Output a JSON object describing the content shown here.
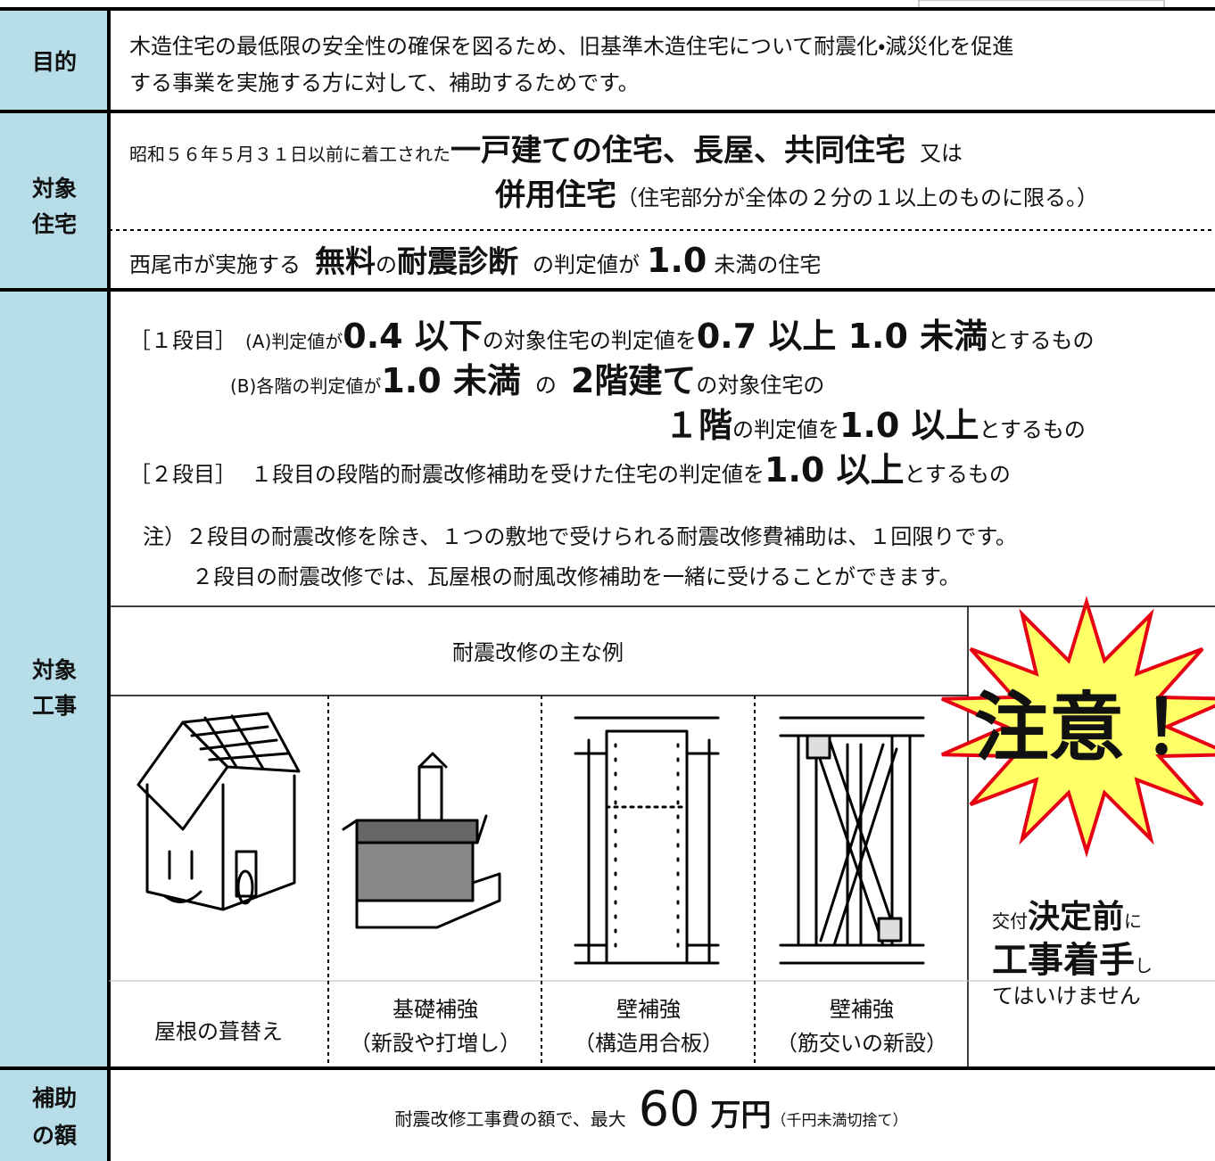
{
  "purpose": {
    "label": "目的",
    "lines": [
      "木造住宅の最低限の安全性の確保を図るため、旧基準木造住宅について耐震化・減災化を促進",
      "する事業を実施する方に対して、補助するためです。"
    ]
  },
  "target_housing": {
    "label": [
      "対象",
      "住宅"
    ],
    "line1": [
      "昭和５６年５月３１日以前に着工された",
      "一戸建ての住宅、長屋、共同住宅",
      "又は"
    ],
    "line2": [
      "併用住宅",
      "（住宅部分が全体の２分の１以上のものに限る。）"
    ],
    "line3": [
      "西尾市が実施する",
      "無料",
      "の",
      "耐震診断",
      "の判定値が",
      "1.0",
      "未満の住宅"
    ]
  },
  "target_work": {
    "label": [
      "対象",
      "工事"
    ],
    "step1": [
      "［１段目］",
      "(A)判定値が",
      "0.4 以下",
      "の対象住宅の判定値を",
      "0.7 以上 1.0 未満",
      "とするもの"
    ],
    "step1b": [
      "(B)各階の判定値が",
      "1.0 未満",
      "の",
      "2階建て",
      "の対象住宅の"
    ],
    "step1c": [
      "１階",
      "の判定値を",
      "1.0 以上",
      "とするもの"
    ],
    "step2": [
      "［２段目］",
      "１段目の段階的耐震改修補助を受けた住宅の判定値を",
      "1.0 以上",
      "とするもの"
    ],
    "notes": [
      "注）２段目の耐震改修を除き、１つの敷地で受けられる耐震改修費補助は、１回限りです。",
      "２段目の耐震改修では、瓦屋根の耐風改修補助を一緒に受けることができます。"
    ],
    "examples_title": "耐震改修の主な例",
    "examples": [
      [
        "屋根の葺替え"
      ],
      [
        "基礎補強",
        "（新設や打増し）"
      ],
      [
        "壁補強",
        "（構造用合板）"
      ],
      [
        "壁補強",
        "（筋交いの新設）"
      ]
    ],
    "warning_badge": "注意！",
    "warning": [
      "交付",
      "決定前",
      "に",
      "工事着手",
      "し",
      "てはいけません"
    ]
  },
  "subsidy": {
    "label": [
      "補助",
      "の額"
    ],
    "parts": [
      "耐震改修工事費の額で、最大",
      "60",
      "万円",
      "（千円未満切捨て）"
    ]
  }
}
